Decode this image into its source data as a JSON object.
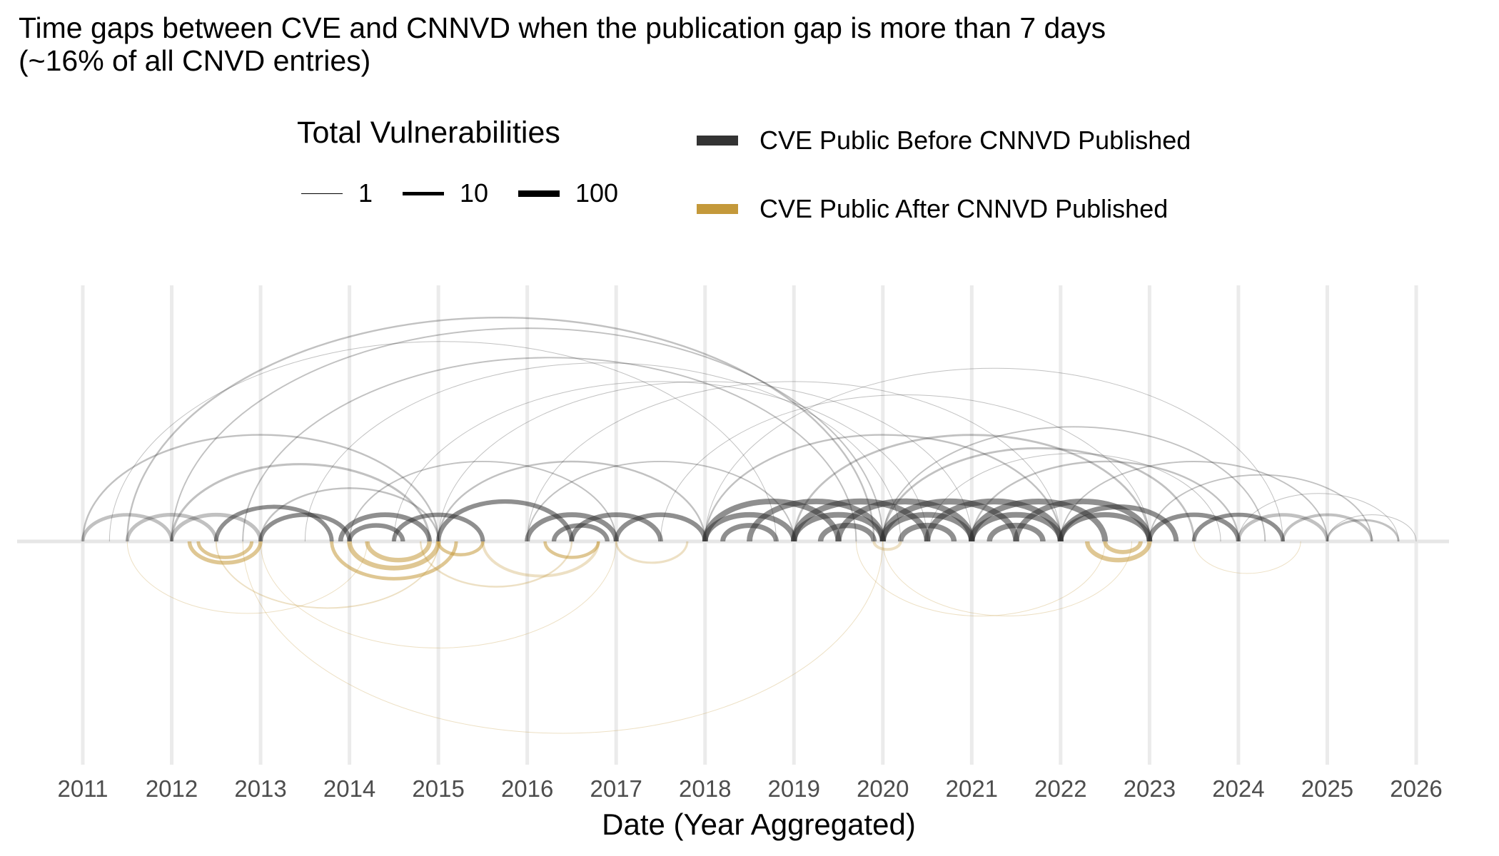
{
  "chart_data": {
    "type": "arc",
    "title": "Time gaps between CVE and CNNVD when the publication gap is more than 7 days",
    "subtitle": "(~16% of all CNVD entries)",
    "xlabel": "Date (Year Aggregated)",
    "ylabel": "",
    "xlim": [
      2011,
      2026
    ],
    "x_ticks": [
      "2011",
      "2012",
      "2013",
      "2014",
      "2015",
      "2016",
      "2017",
      "2018",
      "2019",
      "2020",
      "2021",
      "2022",
      "2023",
      "2024",
      "2025",
      "2026"
    ],
    "grid": "vertical major gridlines",
    "legend_placement": "top",
    "size_legend": {
      "title": "Total Vulnerabilities",
      "entries": [
        "1",
        "10",
        "100"
      ],
      "values": [
        1,
        10,
        100
      ]
    },
    "color_legend": [
      {
        "label": "CVE Public Before CNNVD Published",
        "color": "#333333",
        "direction": "above"
      },
      {
        "label": "CVE Public After CNNVD Published",
        "color": "#C4993A",
        "direction": "below"
      }
    ],
    "series": [
      {
        "name": "CVE Public Before CNNVD Published",
        "arcs_from_to_count": [
          [
            2011.5,
            2019.9,
            3
          ],
          [
            2012,
            2020,
            2
          ],
          [
            2012.8,
            2019.7,
            2
          ],
          [
            2011.3,
            2018.8,
            1
          ],
          [
            2013.5,
            2020.2,
            1
          ],
          [
            2014.5,
            2020.5,
            1
          ],
          [
            2018,
            2024.5,
            1
          ],
          [
            2020,
            2024.3,
            2
          ],
          [
            2020.5,
            2023.8,
            1
          ],
          [
            2017.5,
            2023,
            1
          ],
          [
            2015,
            2021,
            1
          ],
          [
            2016,
            2022,
            1
          ],
          [
            2011,
            2015,
            3
          ],
          [
            2012,
            2014.9,
            5
          ],
          [
            2013,
            2015,
            3
          ],
          [
            2014,
            2017,
            2
          ],
          [
            2015,
            2018,
            3
          ],
          [
            2016,
            2019,
            2
          ],
          [
            2018,
            2022,
            3
          ],
          [
            2019,
            2023,
            4
          ],
          [
            2020,
            2023.5,
            4
          ],
          [
            2021,
            2024,
            3
          ],
          [
            2022,
            2025,
            2
          ],
          [
            2023,
            2025.5,
            2
          ],
          [
            2024,
            2025.8,
            1
          ],
          [
            2025,
            2026,
            1
          ],
          [
            2011,
            2012,
            20
          ],
          [
            2011.5,
            2012.5,
            25
          ],
          [
            2012,
            2013,
            30
          ],
          [
            2012.5,
            2013.8,
            40
          ],
          [
            2013,
            2014,
            50
          ],
          [
            2013.9,
            2014.9,
            80
          ],
          [
            2014.5,
            2015.5,
            50
          ],
          [
            2015,
            2016.5,
            60
          ],
          [
            2016,
            2017,
            100
          ],
          [
            2016.5,
            2017.5,
            80
          ],
          [
            2017,
            2018,
            70
          ],
          [
            2018,
            2019.5,
            200
          ],
          [
            2018.5,
            2020,
            200
          ],
          [
            2019,
            2020.5,
            300
          ],
          [
            2019.5,
            2021,
            300
          ],
          [
            2020,
            2021.5,
            300
          ],
          [
            2020.5,
            2022,
            300
          ],
          [
            2021,
            2022.5,
            250
          ],
          [
            2021.5,
            2023,
            200
          ],
          [
            2022,
            2023.3,
            100
          ],
          [
            2023,
            2024,
            60
          ],
          [
            2023.5,
            2024.5,
            40
          ],
          [
            2024,
            2025,
            20
          ],
          [
            2024.5,
            2025.5,
            10
          ],
          [
            2025,
            2025.8,
            5
          ],
          [
            2018,
            2019,
            150
          ],
          [
            2019,
            2020,
            200
          ],
          [
            2020,
            2021,
            200
          ],
          [
            2021,
            2022,
            200
          ],
          [
            2022,
            2023,
            120
          ],
          [
            2018.2,
            2018.8,
            100
          ],
          [
            2019.3,
            2019.9,
            150
          ],
          [
            2020.2,
            2020.8,
            150
          ],
          [
            2021.2,
            2021.8,
            150
          ],
          [
            2014,
            2014.6,
            60
          ],
          [
            2016.3,
            2016.9,
            60
          ]
        ]
      },
      {
        "name": "CVE Public After CNNVD Published",
        "arcs_from_to_count": [
          [
            2012.2,
            2013,
            30
          ],
          [
            2012.3,
            2012.9,
            20
          ],
          [
            2014,
            2015,
            80
          ],
          [
            2014.2,
            2014.9,
            60
          ],
          [
            2013.8,
            2015.2,
            20
          ],
          [
            2015,
            2015.5,
            15
          ],
          [
            2015.5,
            2016.8,
            10
          ],
          [
            2016.2,
            2016.8,
            15
          ],
          [
            2017,
            2017.8,
            5
          ],
          [
            2019.9,
            2020.2,
            10
          ],
          [
            2022.3,
            2023,
            60
          ],
          [
            2022.5,
            2022.9,
            40
          ],
          [
            2012.8,
            2020,
            1
          ],
          [
            2013,
            2017,
            1
          ],
          [
            2012.5,
            2015,
            2
          ],
          [
            2019.7,
            2022.5,
            1
          ],
          [
            2020,
            2022.8,
            1
          ],
          [
            2023.5,
            2024.7,
            1
          ],
          [
            2011.5,
            2014.2,
            1
          ],
          [
            2014.8,
            2016.5,
            3
          ]
        ]
      }
    ]
  }
}
